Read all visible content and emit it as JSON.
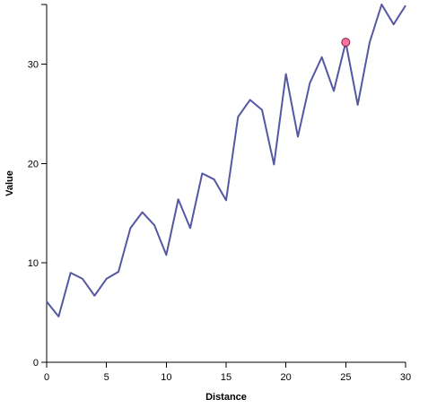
{
  "chart_data": {
    "type": "line",
    "xlabel": "Distance",
    "ylabel": "Value",
    "xlim": [
      0,
      30
    ],
    "ylim": [
      0,
      36
    ],
    "x_ticks": [
      0,
      5,
      10,
      15,
      20,
      25,
      30
    ],
    "y_ticks": [
      0,
      10,
      20,
      30
    ],
    "grid": false,
    "colors": {
      "line": "#5558a0",
      "highlight_fill": "#ff6f9f",
      "highlight_stroke": "#7a2040"
    },
    "series": [
      {
        "x": [
          0,
          1,
          2,
          3,
          4,
          5,
          6,
          7,
          8,
          9,
          10,
          11,
          12,
          13,
          14,
          15,
          16,
          17,
          18,
          19,
          20,
          21,
          22,
          23,
          24,
          25,
          26,
          27,
          28,
          29,
          30
        ],
        "values": [
          6.1,
          4.6,
          9.0,
          8.4,
          6.7,
          8.4,
          9.1,
          13.5,
          15.1,
          13.8,
          10.8,
          16.4,
          13.5,
          19.0,
          18.4,
          16.3,
          24.7,
          26.4,
          25.4,
          19.9,
          29.0,
          22.7,
          28.1,
          30.7,
          27.3,
          32.2,
          25.9,
          32.2,
          36.0,
          34.0,
          35.9
        ]
      }
    ],
    "highlight": {
      "x": 25,
      "y": 32.2
    }
  }
}
